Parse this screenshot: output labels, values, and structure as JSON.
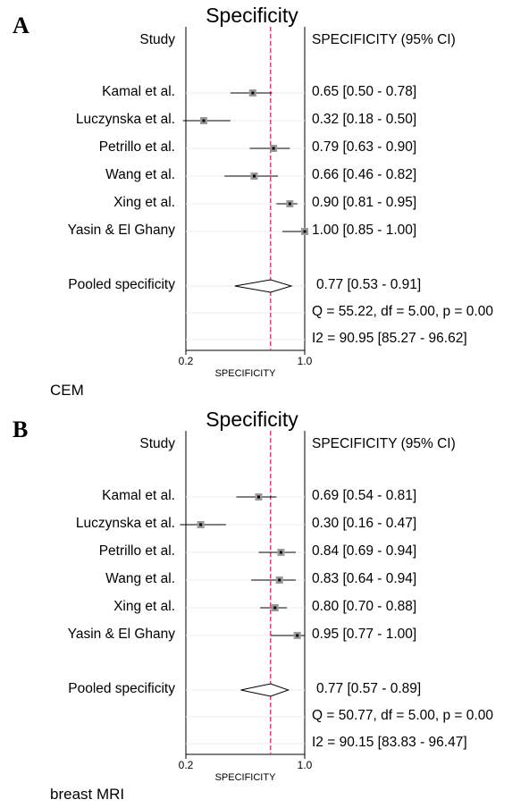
{
  "chart_data": [
    {
      "type": "forest",
      "panel": "A",
      "title": "Specificity",
      "left_header": "Study",
      "right_header": "SPECIFICITY (95% CI)",
      "studies": [
        {
          "name": "Kamal et al.",
          "estimate": 0.65,
          "lower": 0.5,
          "upper": 0.78,
          "ci_text": "0.65 [0.50 - 0.78]"
        },
        {
          "name": "Luczynska et al.",
          "estimate": 0.32,
          "lower": 0.18,
          "upper": 0.5,
          "ci_text": "0.32 [0.18 - 0.50]"
        },
        {
          "name": "Petrillo et al.",
          "estimate": 0.79,
          "lower": 0.63,
          "upper": 0.9,
          "ci_text": "0.79 [0.63 - 0.90]"
        },
        {
          "name": "Wang et al.",
          "estimate": 0.66,
          "lower": 0.46,
          "upper": 0.82,
          "ci_text": "0.66 [0.46 - 0.82]"
        },
        {
          "name": "Xing et al.",
          "estimate": 0.9,
          "lower": 0.81,
          "upper": 0.95,
          "ci_text": "0.90 [0.81 - 0.95]"
        },
        {
          "name": "Yasin & El Ghany",
          "estimate": 1.0,
          "lower": 0.85,
          "upper": 1.0,
          "ci_text": "1.00 [0.85 - 1.00]"
        }
      ],
      "pooled": {
        "label": "Pooled specificity",
        "estimate": 0.77,
        "lower": 0.53,
        "upper": 0.91,
        "ci_text": "0.77 [0.53 - 0.91]"
      },
      "heterogeneity_q": "Q = 55.22, df = 5.00, p =  0.00",
      "heterogeneity_i2": "I2 = 90.95 [85.27 - 96.62]",
      "x_ticks": [
        {
          "value": 0.2,
          "label": "0.2"
        },
        {
          "value": 1.0,
          "label": "1.0"
        }
      ],
      "xlabel": "SPECIFICITY",
      "xlim": [
        0.2,
        1.0
      ],
      "reference_line": 0.77,
      "footer": "CEM",
      "colors": {
        "reference_line": "#d6336c",
        "marker": "#999999",
        "line": "#000000"
      }
    },
    {
      "type": "forest",
      "panel": "B",
      "title": "Specificity",
      "left_header": "Study",
      "right_header": "SPECIFICITY (95% CI)",
      "studies": [
        {
          "name": "Kamal et al.",
          "estimate": 0.69,
          "lower": 0.54,
          "upper": 0.81,
          "ci_text": "0.69 [0.54 - 0.81]"
        },
        {
          "name": "Luczynska et al.",
          "estimate": 0.3,
          "lower": 0.16,
          "upper": 0.47,
          "ci_text": "0.30 [0.16 - 0.47]"
        },
        {
          "name": "Petrillo et al.",
          "estimate": 0.84,
          "lower": 0.69,
          "upper": 0.94,
          "ci_text": "0.84 [0.69 - 0.94]"
        },
        {
          "name": "Wang et al.",
          "estimate": 0.83,
          "lower": 0.64,
          "upper": 0.94,
          "ci_text": "0.83 [0.64 - 0.94]"
        },
        {
          "name": "Xing et al.",
          "estimate": 0.8,
          "lower": 0.7,
          "upper": 0.88,
          "ci_text": "0.80 [0.70 - 0.88]"
        },
        {
          "name": "Yasin & El Ghany",
          "estimate": 0.95,
          "lower": 0.77,
          "upper": 1.0,
          "ci_text": "0.95 [0.77 - 1.00]"
        }
      ],
      "pooled": {
        "label": "Pooled specificity",
        "estimate": 0.77,
        "lower": 0.57,
        "upper": 0.89,
        "ci_text": "0.77 [0.57 - 0.89]"
      },
      "heterogeneity_q": "Q = 50.77, df = 5.00, p =  0.00",
      "heterogeneity_i2": "I2 = 90.15 [83.83 - 96.47]",
      "x_ticks": [
        {
          "value": 0.2,
          "label": "0.2"
        },
        {
          "value": 1.0,
          "label": "1.0"
        }
      ],
      "xlabel": "SPECIFICITY",
      "xlim": [
        0.2,
        1.0
      ],
      "reference_line": 0.77,
      "footer": "breast MRI",
      "colors": {
        "reference_line": "#d6336c",
        "marker": "#999999",
        "line": "#000000"
      }
    }
  ]
}
